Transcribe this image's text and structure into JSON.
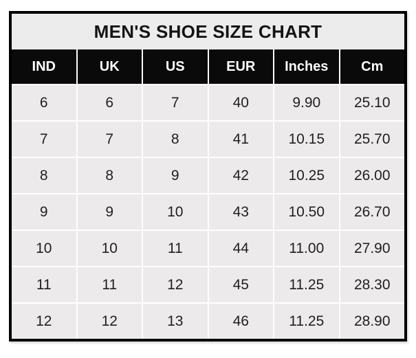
{
  "title": "MEN'S SHOE SIZE CHART",
  "colors": {
    "outer_border": "#000000",
    "title_bg": "#edecec",
    "header_bg": "#0a0a0a",
    "header_text": "#ffffff",
    "cell_bg": "#eceaea",
    "cell_text": "#1f1f1f",
    "separator": "#ffffff",
    "page_bg": "#ffffff"
  },
  "chart_data": {
    "type": "table",
    "title": "MEN'S SHOE SIZE CHART",
    "columns": [
      "IND",
      "UK",
      "US",
      "EUR",
      "Inches",
      "Cm"
    ],
    "rows": [
      [
        "6",
        "6",
        "7",
        "40",
        "9.90",
        "25.10"
      ],
      [
        "7",
        "7",
        "8",
        "41",
        "10.15",
        "25.70"
      ],
      [
        "8",
        "8",
        "9",
        "42",
        "10.25",
        "26.00"
      ],
      [
        "9",
        "9",
        "10",
        "43",
        "10.50",
        "26.70"
      ],
      [
        "10",
        "10",
        "11",
        "44",
        "11.00",
        "27.90"
      ],
      [
        "11",
        "11",
        "12",
        "45",
        "11.25",
        "28.30"
      ],
      [
        "12",
        "12",
        "13",
        "46",
        "11.25",
        "28.90"
      ]
    ]
  }
}
